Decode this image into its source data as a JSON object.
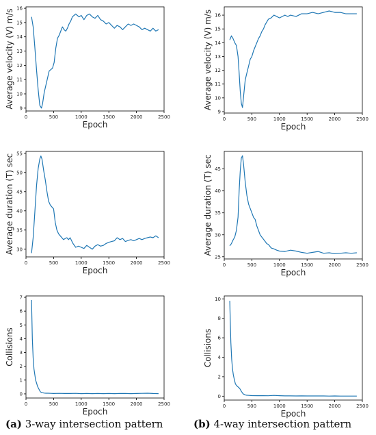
{
  "chart_data": [
    {
      "type": "line",
      "panel": "a",
      "xlabel": "Epoch",
      "ylabel": "Average velocity (V) m/s",
      "xlim": [
        0,
        2500
      ],
      "ylim": [
        8.8,
        16.1
      ],
      "xticks": [
        0,
        500,
        1000,
        1500,
        2000,
        2500
      ],
      "yticks": [
        9,
        10,
        11,
        12,
        13,
        14,
        15,
        16
      ],
      "series": [
        {
          "x": [
            100,
            130,
            160,
            190,
            220,
            250,
            280,
            300,
            330,
            360,
            390,
            420,
            450,
            480,
            510,
            540,
            570,
            600,
            630,
            660,
            690,
            720,
            750,
            780,
            810,
            840,
            870,
            900,
            930,
            960,
            1000,
            1050,
            1100,
            1150,
            1200,
            1250,
            1300,
            1350,
            1400,
            1450,
            1500,
            1550,
            1600,
            1650,
            1700,
            1750,
            1800,
            1850,
            1900,
            1950,
            2000,
            2050,
            2100,
            2150,
            2200,
            2250,
            2300,
            2350,
            2400
          ],
          "values": [
            15.4,
            14.7,
            13.3,
            11.7,
            10.3,
            9.2,
            9.0,
            9.3,
            10.1,
            10.6,
            11.1,
            11.6,
            11.7,
            11.8,
            12.2,
            13.2,
            13.9,
            14.1,
            14.4,
            14.7,
            14.5,
            14.4,
            14.6,
            14.9,
            15.1,
            15.4,
            15.5,
            15.6,
            15.5,
            15.4,
            15.5,
            15.2,
            15.5,
            15.6,
            15.4,
            15.3,
            15.5,
            15.2,
            15.1,
            14.9,
            15.0,
            14.8,
            14.6,
            14.8,
            14.7,
            14.5,
            14.7,
            14.9,
            14.8,
            14.9,
            14.8,
            14.7,
            14.5,
            14.6,
            14.5,
            14.4,
            14.6,
            14.4,
            14.5
          ]
        }
      ]
    },
    {
      "type": "line",
      "panel": "b",
      "xlabel": "Epoch",
      "ylabel": "Average velocity (V) m/s",
      "xlim": [
        0,
        2500
      ],
      "ylim": [
        8.9,
        16.6
      ],
      "xticks": [
        0,
        500,
        1000,
        1500,
        2000,
        2500
      ],
      "yticks": [
        9,
        10,
        11,
        12,
        13,
        14,
        15,
        16
      ],
      "series": [
        {
          "x": [
            100,
            130,
            160,
            190,
            220,
            250,
            270,
            290,
            310,
            330,
            350,
            380,
            410,
            440,
            470,
            500,
            530,
            560,
            590,
            620,
            650,
            680,
            710,
            740,
            770,
            800,
            850,
            900,
            950,
            1000,
            1050,
            1100,
            1150,
            1200,
            1300,
            1400,
            1500,
            1600,
            1700,
            1800,
            1900,
            2000,
            2100,
            2200,
            2300,
            2400
          ],
          "values": [
            14.2,
            14.5,
            14.3,
            14.0,
            13.8,
            13.0,
            11.8,
            10.5,
            9.6,
            9.3,
            10.1,
            11.3,
            11.8,
            12.3,
            12.8,
            13.0,
            13.4,
            13.7,
            14.0,
            14.3,
            14.5,
            14.8,
            15.0,
            15.3,
            15.5,
            15.7,
            15.8,
            16.0,
            15.9,
            15.8,
            15.9,
            16.0,
            15.9,
            16.0,
            15.9,
            16.1,
            16.1,
            16.2,
            16.1,
            16.2,
            16.3,
            16.2,
            16.2,
            16.1,
            16.1,
            16.1
          ]
        }
      ]
    },
    {
      "type": "line",
      "panel": "a",
      "xlabel": "Epoch",
      "ylabel": "Average duration (T) sec",
      "xlim": [
        0,
        2500
      ],
      "ylim": [
        28,
        55.5
      ],
      "xticks": [
        0,
        500,
        1000,
        1500,
        2000,
        2500
      ],
      "yticks": [
        30,
        35,
        40,
        45,
        50,
        55
      ],
      "series": [
        {
          "x": [
            100,
            130,
            160,
            190,
            220,
            250,
            270,
            290,
            320,
            350,
            380,
            410,
            440,
            470,
            500,
            530,
            560,
            590,
            620,
            650,
            680,
            710,
            740,
            770,
            800,
            850,
            900,
            950,
            1000,
            1050,
            1100,
            1150,
            1200,
            1250,
            1300,
            1350,
            1400,
            1450,
            1500,
            1550,
            1600,
            1650,
            1700,
            1750,
            1800,
            1850,
            1900,
            1950,
            2000,
            2050,
            2100,
            2150,
            2200,
            2250,
            2300,
            2350,
            2400
          ],
          "values": [
            29.0,
            33.0,
            39.5,
            46.5,
            51.0,
            53.5,
            54.3,
            53.5,
            50.5,
            48.0,
            45.0,
            42.5,
            41.5,
            41.0,
            40.5,
            37.0,
            35.0,
            34.0,
            33.5,
            33.0,
            32.5,
            32.8,
            33.0,
            32.5,
            33.0,
            31.5,
            30.5,
            30.8,
            30.5,
            30.2,
            31.0,
            30.5,
            30.0,
            30.8,
            31.2,
            30.8,
            31.0,
            31.5,
            31.8,
            32.0,
            32.2,
            33.0,
            32.5,
            32.8,
            32.0,
            32.3,
            32.5,
            32.2,
            32.5,
            32.8,
            32.5,
            32.8,
            33.0,
            33.2,
            33.0,
            33.5,
            33.0
          ]
        }
      ]
    },
    {
      "type": "line",
      "panel": "b",
      "xlabel": "Epoch",
      "ylabel": "Average duration (T) sec",
      "xlim": [
        0,
        2500
      ],
      "ylim": [
        24.5,
        49
      ],
      "xticks": [
        0,
        500,
        1000,
        1500,
        2000,
        2500
      ],
      "yticks": [
        25,
        30,
        35,
        40,
        45
      ],
      "series": [
        {
          "x": [
            100,
            130,
            160,
            190,
            220,
            250,
            270,
            290,
            310,
            330,
            350,
            380,
            410,
            440,
            470,
            500,
            530,
            560,
            590,
            620,
            650,
            680,
            710,
            740,
            770,
            800,
            850,
            900,
            950,
            1000,
            1100,
            1200,
            1300,
            1400,
            1500,
            1600,
            1700,
            1800,
            1900,
            2000,
            2100,
            2200,
            2300,
            2400
          ],
          "values": [
            27.5,
            28.0,
            28.8,
            29.5,
            31.0,
            34.0,
            40.0,
            44.5,
            47.5,
            48.0,
            46.0,
            42.0,
            39.0,
            37.0,
            36.0,
            35.0,
            34.0,
            33.5,
            32.0,
            31.0,
            30.0,
            29.5,
            29.0,
            28.5,
            28.0,
            27.8,
            27.0,
            26.8,
            26.5,
            26.3,
            26.2,
            26.5,
            26.3,
            26.0,
            25.8,
            26.0,
            26.2,
            25.8,
            25.9,
            25.7,
            25.8,
            25.9,
            25.8,
            25.9
          ]
        }
      ]
    },
    {
      "type": "line",
      "panel": "a",
      "xlabel": "Epoch",
      "ylabel": "Collisions",
      "xlim": [
        0,
        2500
      ],
      "ylim": [
        -0.3,
        7.1
      ],
      "xticks": [
        0,
        500,
        1000,
        1500,
        2000,
        2500
      ],
      "yticks": [
        0,
        1,
        2,
        3,
        4,
        5,
        6,
        7
      ],
      "series": [
        {
          "x": [
            100,
            115,
            130,
            145,
            160,
            175,
            190,
            205,
            220,
            240,
            260,
            280,
            300,
            330,
            360,
            400,
            450,
            500,
            600,
            700,
            800,
            900,
            1000,
            1100,
            1200,
            1300,
            1400,
            1500,
            1600,
            1700,
            1800,
            1900,
            2000,
            2100,
            2200,
            2300,
            2400
          ],
          "values": [
            6.8,
            4.0,
            2.6,
            1.8,
            1.4,
            1.0,
            0.8,
            0.6,
            0.45,
            0.3,
            0.15,
            0.1,
            0.08,
            0.06,
            0.05,
            0.05,
            0.04,
            0.03,
            0.04,
            0.03,
            0.03,
            0.04,
            0.02,
            0.03,
            0.02,
            0.03,
            0.02,
            0.03,
            0.02,
            0.03,
            0.03,
            0.02,
            0.03,
            0.04,
            0.05,
            0.03,
            0.02
          ]
        }
      ]
    },
    {
      "type": "line",
      "panel": "b",
      "xlabel": "Epoch",
      "ylabel": "Collisions",
      "xlim": [
        0,
        2500
      ],
      "ylim": [
        -0.4,
        10.3
      ],
      "xticks": [
        0,
        500,
        1000,
        1500,
        2000,
        2500
      ],
      "yticks": [
        0,
        2,
        4,
        6,
        8,
        10
      ],
      "series": [
        {
          "x": [
            100,
            110,
            120,
            135,
            150,
            165,
            180,
            200,
            220,
            250,
            280,
            310,
            340,
            370,
            400,
            450,
            500,
            600,
            700,
            800,
            900,
            1000,
            1100,
            1200,
            1300,
            1400,
            1500,
            1600,
            1700,
            1800,
            1900,
            2000,
            2100,
            2200,
            2300,
            2400
          ],
          "values": [
            9.8,
            7.5,
            5.5,
            3.8,
            2.8,
            2.2,
            1.8,
            1.3,
            1.1,
            0.95,
            0.8,
            0.5,
            0.25,
            0.15,
            0.1,
            0.08,
            0.06,
            0.05,
            0.05,
            0.04,
            0.08,
            0.05,
            0.03,
            0.03,
            0.02,
            0.03,
            0.02,
            0.02,
            0.02,
            0.02,
            0.01,
            0.02,
            0.01,
            0.01,
            0.01,
            0.01
          ]
        }
      ]
    }
  ],
  "captions": {
    "a": {
      "label": "(a)",
      "text": " 3-way intersection pattern"
    },
    "b": {
      "label": "(b)",
      "text": " 4-way intersection pattern"
    }
  },
  "colors": {
    "line": "#1f77b4",
    "axis": "#000000",
    "text": "#222222"
  }
}
